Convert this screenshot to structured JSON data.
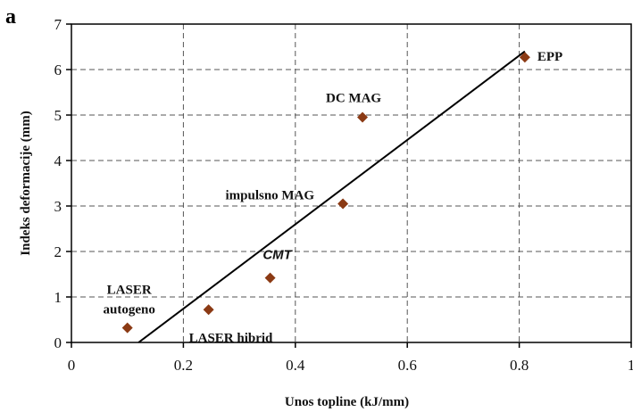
{
  "panel_label": "a",
  "chart_data": {
    "type": "scatter",
    "title": "",
    "xlabel": "Unos topline (kJ/mm)",
    "ylabel": "Indeks deformacije (mm)",
    "xlim": [
      0,
      1
    ],
    "ylim": [
      0,
      7
    ],
    "xticks": [
      "0",
      "0.2",
      "0.4",
      "0.6",
      "0.8",
      "1"
    ],
    "yticks": [
      "0",
      "1",
      "2",
      "3",
      "4",
      "5",
      "6",
      "7"
    ],
    "grid": true,
    "marker_color": "#8b3a14",
    "line_color": "#000000",
    "points": [
      {
        "label": "LASER autogeno",
        "label_lines": [
          "LASER",
          "autogeno"
        ],
        "x": 0.1,
        "y": 0.32
      },
      {
        "label": "LASER hibrid",
        "label_lines": [
          "LASER hibrid"
        ],
        "x": 0.245,
        "y": 0.72
      },
      {
        "label": "CMT",
        "label_lines": [
          "CMT"
        ],
        "x": 0.355,
        "y": 1.42,
        "italic": true
      },
      {
        "label": "impulsno MAG",
        "label_lines": [
          "impulsno MAG"
        ],
        "x": 0.485,
        "y": 3.05
      },
      {
        "label": "DC MAG",
        "label_lines": [
          "DC MAG"
        ],
        "x": 0.52,
        "y": 4.95
      },
      {
        "label": "EPP",
        "label_lines": [
          "EPP"
        ],
        "x": 0.81,
        "y": 6.27
      }
    ],
    "trendline": {
      "x": [
        0.12,
        0.81
      ],
      "y": [
        0,
        6.4
      ]
    }
  }
}
